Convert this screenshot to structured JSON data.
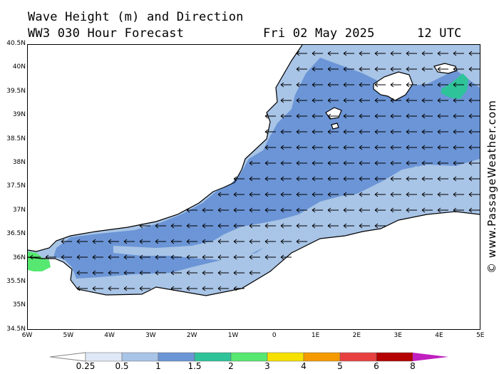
{
  "header": {
    "title": "Wave Height (m) and Direction",
    "forecast": "WW3 030 Hour Forecast",
    "date": "Fri 02 May 2025",
    "time": "12 UTC"
  },
  "map": {
    "lat_labels": [
      "40.5N",
      "40N",
      "39.5N",
      "39N",
      "38.5N",
      "38N",
      "37.5N",
      "37N",
      "36.5N",
      "36N",
      "35.5N",
      "35N",
      "34.5N"
    ],
    "lon_labels": [
      "6W",
      "5W",
      "4W",
      "3W",
      "2W",
      "1W",
      "0",
      "1E",
      "2E",
      "3E",
      "4E",
      "5E"
    ],
    "colors": {
      "land": "#ffffff",
      "coast": "#000000",
      "band_025_05": "#a8c4e6",
      "band_05_1": "#a8c4e6",
      "band_1_15": "#6b95d6",
      "band_15_2": "#2fc39a",
      "band_2_3": "#56e870"
    },
    "arrow_direction": "westward"
  },
  "legend": {
    "labels": [
      "0.25",
      "0.5",
      "1",
      "1.5",
      "2",
      "3",
      "4",
      "5",
      "6",
      "8"
    ],
    "colors": [
      "#dfe8f6",
      "#a8c4e6",
      "#6b95d6",
      "#2fc39a",
      "#56e870",
      "#f5e000",
      "#f59a00",
      "#e84040",
      "#b40000",
      "#c020c0"
    ]
  },
  "watermark": "© www.PassageWeather.com"
}
